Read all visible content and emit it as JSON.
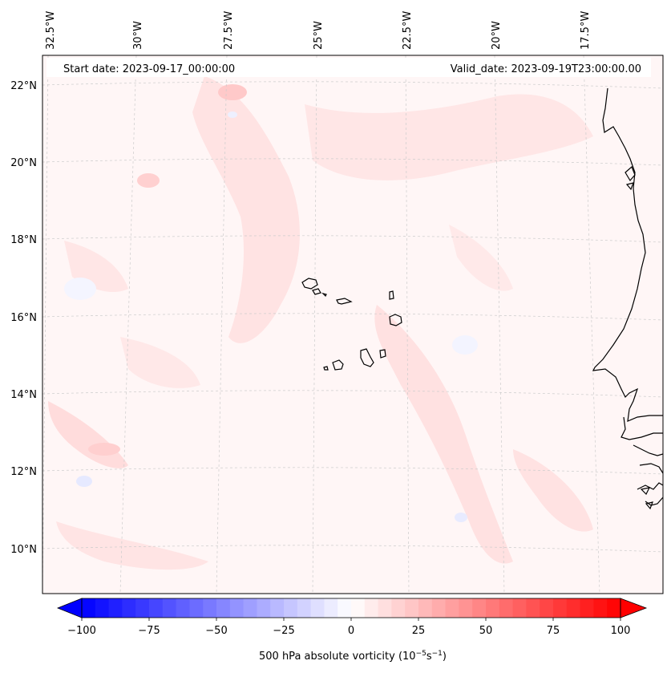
{
  "header": {
    "start_date": "Start date: 2023-09-17_00:00:00",
    "valid_date": "Valid_date: 2023-09-19T23:00:00.00"
  },
  "longitude_labels": [
    "32.5°W",
    "30°W",
    "27.5°W",
    "25°W",
    "22.5°W",
    "20°W",
    "17.5°W"
  ],
  "latitude_labels": [
    "22°N",
    "20°N",
    "18°N",
    "16°N",
    "14°N",
    "12°N",
    "10°N"
  ],
  "colorbar": {
    "ticks": [
      "−100",
      "−75",
      "−50",
      "−25",
      "0",
      "25",
      "50",
      "75",
      "100"
    ],
    "tick_values": [
      -100,
      -75,
      -50,
      -25,
      0,
      25,
      50,
      75,
      100
    ],
    "min": -100,
    "max": 100,
    "step": 5,
    "label_prefix": "500 hPa absolute vorticity (10",
    "label_exp1": "−5",
    "label_mid": "s",
    "label_exp2": "−1",
    "label_suffix": ")",
    "colormap": "bwr",
    "low_color": "#0000ff",
    "mid_color": "#ffffff",
    "high_color": "#ff0000"
  },
  "map": {
    "coastline_color": "#000000",
    "gridline_color": "#c8c8c8",
    "background_tint": "#fff5f5"
  }
}
